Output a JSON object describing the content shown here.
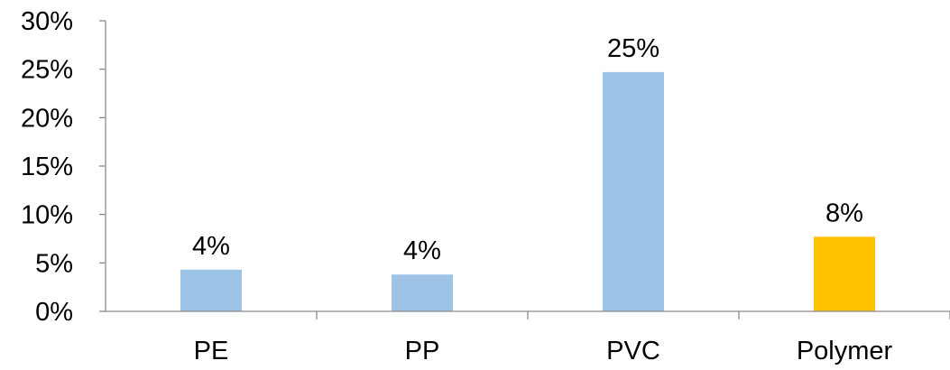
{
  "chart_data": {
    "type": "bar",
    "title": "",
    "xlabel": "",
    "ylabel": "",
    "categories": [
      "PE",
      "PP",
      "PVC",
      "Polymer"
    ],
    "values": [
      4.3,
      3.8,
      24.7,
      7.7
    ],
    "data_labels": [
      "4%",
      "4%",
      "25%",
      "8%"
    ],
    "bar_colors": [
      "#9dc3e6",
      "#9dc3e6",
      "#9dc3e6",
      "#ffc000"
    ],
    "ylim": [
      0,
      30
    ],
    "y_ticks": [
      0,
      5,
      10,
      15,
      20,
      25,
      30
    ],
    "y_tick_labels": [
      "0%",
      "5%",
      "10%",
      "15%",
      "20%",
      "25%",
      "30%"
    ],
    "grid": false,
    "legend": "none"
  }
}
